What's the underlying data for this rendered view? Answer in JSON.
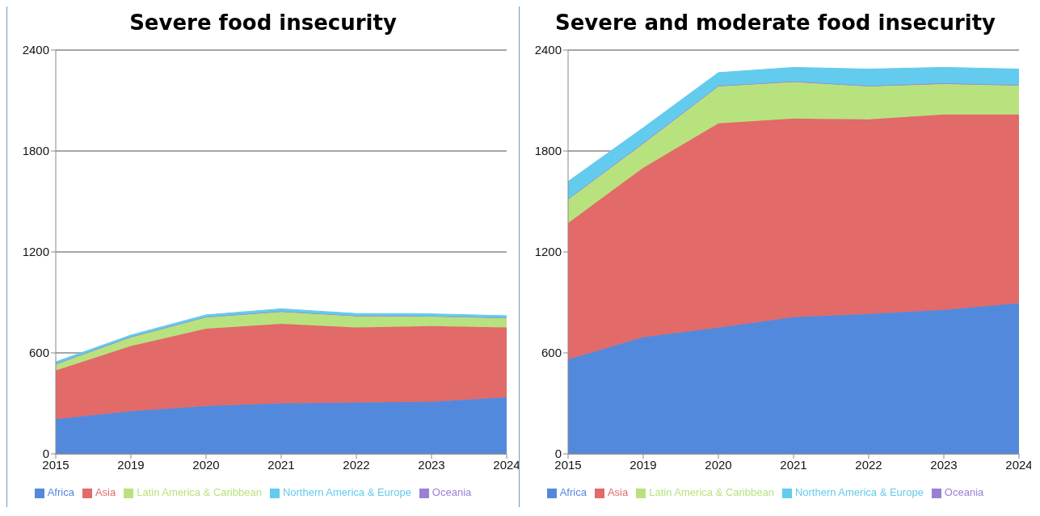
{
  "chart_data": [
    {
      "type": "area",
      "title": "Severe food insecurity",
      "stacked": true,
      "categories": [
        "2015",
        "2019",
        "2020",
        "2021",
        "2022",
        "2023",
        "2024"
      ],
      "ylim": [
        0,
        2400
      ],
      "yticks": [
        0,
        600,
        1200,
        1800,
        2400
      ],
      "grid": "y",
      "legend": "bottom",
      "series": [
        {
          "name": "Africa",
          "color": "#5289dc",
          "values": [
            207,
            253,
            284,
            300,
            305,
            310,
            336
          ]
        },
        {
          "name": "Asia",
          "color": "#e26a68",
          "values": [
            289,
            388,
            460,
            473,
            446,
            450,
            415
          ]
        },
        {
          "name": "Latin America & Caribbean",
          "color": "#b8e27e",
          "values": [
            36,
            52,
            67,
            71,
            67,
            56,
            55
          ]
        },
        {
          "name": "Oceania",
          "color": "#9b80d2",
          "values": [
            3,
            3,
            3,
            3,
            3,
            3,
            3
          ]
        },
        {
          "name": "Northern America & Europe",
          "color": "#62cbee",
          "values": [
            12,
            10,
            12,
            15,
            13,
            13,
            12
          ]
        }
      ]
    },
    {
      "type": "area",
      "title": "Severe and moderate food insecurity",
      "stacked": true,
      "categories": [
        "2015",
        "2019",
        "2020",
        "2021",
        "2022",
        "2023",
        "2024"
      ],
      "ylim": [
        0,
        2400
      ],
      "yticks": [
        0,
        600,
        1200,
        1800,
        2400
      ],
      "grid": "y",
      "legend": "bottom",
      "series": [
        {
          "name": "Africa",
          "color": "#5289dc",
          "values": [
            560,
            694,
            750,
            812,
            832,
            856,
            895
          ]
        },
        {
          "name": "Asia",
          "color": "#e26a68",
          "values": [
            812,
            1007,
            1214,
            1181,
            1156,
            1161,
            1122
          ]
        },
        {
          "name": "Latin America & Caribbean",
          "color": "#b8e27e",
          "values": [
            140,
            142,
            220,
            217,
            196,
            182,
            172
          ]
        },
        {
          "name": "Oceania",
          "color": "#9b80d2",
          "values": [
            4,
            4,
            4,
            4,
            4,
            4,
            4
          ]
        },
        {
          "name": "Northern America & Europe",
          "color": "#62cbee",
          "values": [
            103,
            91,
            78,
            83,
            99,
            94,
            94
          ]
        }
      ]
    }
  ]
}
